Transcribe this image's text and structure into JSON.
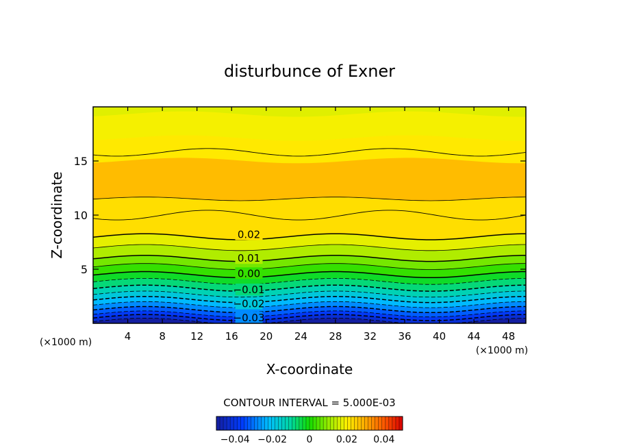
{
  "chart_data": {
    "type": "heatmap",
    "title": "disturbunce of Exner",
    "xlabel": "X-coordinate",
    "ylabel": "Z-coordinate",
    "x_unit": "(×1000 m)",
    "y_unit": "(×1000 m)",
    "xlim": [
      0,
      50
    ],
    "ylim": [
      0,
      20
    ],
    "xticks": [
      4,
      8,
      12,
      16,
      20,
      24,
      28,
      32,
      36,
      40,
      44,
      48
    ],
    "yticks": [
      5,
      10,
      15
    ],
    "contour_interval_text": "CONTOUR INTERVAL = 5.000E-03",
    "colorbar": {
      "range": [
        -0.05,
        0.05
      ],
      "tick_values": [
        -0.04,
        -0.02,
        0,
        0.02,
        0.04
      ],
      "tick_labels": [
        "−0.04",
        "−0.02",
        "0",
        "0.02",
        "0.04"
      ]
    },
    "labeled_contours": [
      {
        "value": 0.02,
        "label": "0.02",
        "x": 18.0,
        "z": 8.2
      },
      {
        "value": 0.01,
        "label": "0.01",
        "x": 18.0,
        "z": 6.0
      },
      {
        "value": 0.0,
        "label": "0.00",
        "x": 18.0,
        "z": 4.6
      },
      {
        "value": -0.01,
        "label": "−0.01",
        "x": 18.0,
        "z": 3.1
      },
      {
        "value": -0.02,
        "label": "−0.02",
        "x": 18.0,
        "z": 1.8
      },
      {
        "value": -0.03,
        "label": "−0.03",
        "x": 18.0,
        "z": 0.5
      }
    ],
    "field_profile": [
      {
        "z": 0.0,
        "value": -0.048
      },
      {
        "z": 1.0,
        "value": -0.033
      },
      {
        "z": 2.0,
        "value": -0.022
      },
      {
        "z": 3.0,
        "value": -0.012
      },
      {
        "z": 4.5,
        "value": 0.0
      },
      {
        "z": 6.0,
        "value": 0.01
      },
      {
        "z": 8.0,
        "value": 0.02
      },
      {
        "z": 10.0,
        "value": 0.0235
      },
      {
        "z": 12.0,
        "value": 0.0255
      },
      {
        "z": 15.8,
        "value": 0.023
      },
      {
        "z": 18.0,
        "value": 0.0205
      },
      {
        "z": 20.0,
        "value": 0.019
      }
    ]
  }
}
